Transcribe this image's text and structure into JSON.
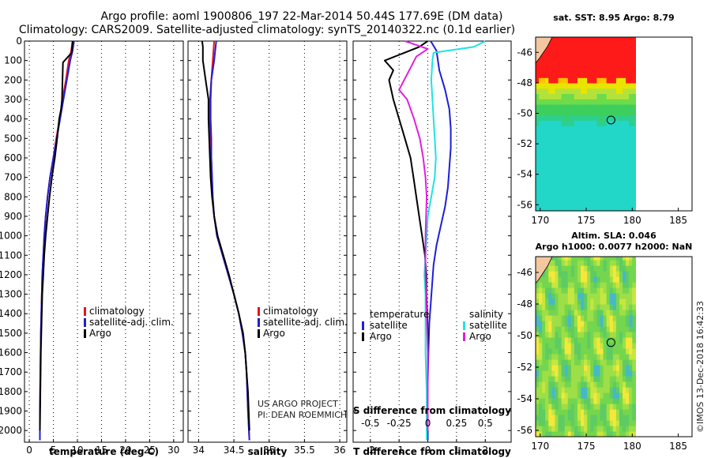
{
  "figure": {
    "title_line1": "Argo profile: aoml 1900806_197 22-Mar-2014 50.44S 177.69E (DM data)",
    "title_line2": "Climatology: CARS2009. Satellite-adjusted climatology: synTS_20140322.nc (0.1d earlier)",
    "credit_project": "US ARGO PROJECT",
    "credit_pi": "PI: DEAN ROEMMICH",
    "imos_stamp": "©IMOS 13-Dec-2018 16:42:33"
  },
  "colors": {
    "argo": "#000000",
    "climatology": "#e8131b",
    "satellite_clim": "#1e1ed8",
    "t_satellite": "#1e1ed8",
    "s_satellite": "#1fe3e3",
    "s_argo": "#e01ee0"
  },
  "chart_data": [
    {
      "id": "temperature",
      "type": "line",
      "xlabel": "temperature (deg C)",
      "ylabel": "",
      "xlim": [
        -1,
        32
      ],
      "ylim": [
        2060,
        0
      ],
      "xticks": [
        0,
        5,
        10,
        15,
        20,
        25,
        30
      ],
      "xtick_labels": [
        "0",
        "5",
        "10",
        "15",
        "20",
        "25",
        "30"
      ],
      "yticks": [
        0,
        100,
        200,
        300,
        400,
        500,
        600,
        700,
        800,
        900,
        1000,
        1100,
        1200,
        1300,
        1400,
        1500,
        1600,
        1700,
        1800,
        1900,
        2000
      ],
      "ytick_labels": [
        "0",
        "100",
        "200",
        "300",
        "400",
        "500",
        "600",
        "700",
        "800",
        "900",
        "1000",
        "1100",
        "1200",
        "1300",
        "1400",
        "1500",
        "1600",
        "1700",
        "1800",
        "1900",
        "2000"
      ],
      "legend": [
        "climatology",
        "satellite-adj. clim.",
        "Argo"
      ],
      "series": [
        {
          "name": "climatology",
          "color_key": "climatology",
          "x": [
            9.0,
            8.7,
            8.2,
            7.6,
            6.9,
            6.3,
            5.6,
            5.0,
            4.3,
            3.8,
            3.4,
            3.1,
            2.9,
            2.7,
            2.6,
            2.5,
            2.4,
            2.35,
            2.3,
            2.25,
            2.2,
            2.2
          ],
          "y": [
            0,
            50,
            100,
            200,
            300,
            400,
            500,
            600,
            700,
            800,
            900,
            1000,
            1100,
            1200,
            1300,
            1400,
            1500,
            1600,
            1700,
            1800,
            1900,
            2050
          ]
        },
        {
          "name": "satellite-adj. clim.",
          "color_key": "satellite_clim",
          "x": [
            9.3,
            9.0,
            8.5,
            7.8,
            7.1,
            6.4,
            5.7,
            5.0,
            4.3,
            3.8,
            3.4,
            3.1,
            2.9,
            2.7,
            2.6,
            2.5,
            2.4,
            2.35,
            2.3,
            2.25,
            2.2,
            2.2
          ],
          "y": [
            0,
            50,
            100,
            200,
            300,
            400,
            500,
            600,
            700,
            800,
            900,
            1000,
            1100,
            1200,
            1300,
            1400,
            1500,
            1600,
            1700,
            1800,
            1900,
            2050
          ]
        },
        {
          "name": "Argo",
          "color_key": "argo",
          "x": [
            9.0,
            8.8,
            7.0,
            6.9,
            6.8,
            6.6,
            6.2,
            5.8,
            5.3,
            4.7,
            4.2,
            3.8,
            3.4,
            3.1,
            2.9,
            2.7,
            2.6,
            2.5,
            2.4,
            2.35,
            2.3,
            2.25,
            2.2
          ],
          "y": [
            0,
            60,
            110,
            200,
            300,
            350,
            400,
            500,
            600,
            700,
            800,
            900,
            1000,
            1100,
            1200,
            1300,
            1400,
            1500,
            1600,
            1700,
            1800,
            1900,
            2000
          ]
        }
      ]
    },
    {
      "id": "salinity",
      "type": "line",
      "xlabel": "salinity",
      "ylabel": "",
      "xlim": [
        33.85,
        36.1
      ],
      "ylim": [
        2060,
        0
      ],
      "xticks": [
        34,
        34.5,
        35,
        35.5,
        36
      ],
      "xtick_labels": [
        "34",
        "34.5",
        "35",
        "35.5",
        "36"
      ],
      "legend": [
        "climatology",
        "satellite-adj. clim.",
        "Argo"
      ],
      "series": [
        {
          "name": "climatology",
          "color_key": "climatology",
          "x": [
            34.22,
            34.2,
            34.18,
            34.16,
            34.16,
            34.17,
            34.18,
            34.19,
            34.2,
            34.22,
            34.26,
            34.34,
            34.42,
            34.5,
            34.57,
            34.62,
            34.66,
            34.68,
            34.69,
            34.7,
            34.72
          ],
          "y": [
            0,
            100,
            200,
            300,
            400,
            500,
            600,
            700,
            800,
            900,
            1000,
            1100,
            1200,
            1300,
            1400,
            1500,
            1600,
            1700,
            1800,
            1900,
            2050
          ]
        },
        {
          "name": "satellite-adj. clim.",
          "color_key": "satellite_clim",
          "x": [
            34.25,
            34.22,
            34.18,
            34.17,
            34.17,
            34.18,
            34.18,
            34.19,
            34.2,
            34.22,
            34.26,
            34.34,
            34.42,
            34.5,
            34.57,
            34.62,
            34.66,
            34.68,
            34.69,
            34.7,
            34.72
          ],
          "y": [
            0,
            100,
            200,
            300,
            400,
            500,
            600,
            700,
            800,
            900,
            1000,
            1100,
            1200,
            1300,
            1400,
            1500,
            1600,
            1700,
            1800,
            1900,
            2050
          ]
        },
        {
          "name": "Argo",
          "color_key": "argo",
          "x": [
            34.05,
            34.06,
            34.06,
            34.1,
            34.14,
            34.14,
            34.15,
            34.16,
            34.17,
            34.19,
            34.22,
            34.27,
            34.35,
            34.43,
            34.5,
            34.57,
            34.63,
            34.66,
            34.68,
            34.7,
            34.71,
            34.72
          ],
          "y": [
            0,
            30,
            100,
            200,
            300,
            400,
            500,
            600,
            700,
            800,
            900,
            1000,
            1100,
            1200,
            1300,
            1400,
            1500,
            1600,
            1700,
            1800,
            1900,
            2000
          ]
        }
      ]
    },
    {
      "id": "difference",
      "type": "line",
      "xlabel": "T difference from climatology",
      "xlabel2": "S difference from climatology",
      "xlim": [
        -2.6,
        2.9
      ],
      "ylim": [
        2060,
        0
      ],
      "xticks": [
        -2,
        -1,
        0,
        1,
        2
      ],
      "xtick_labels": [
        "-2",
        "-1",
        "0",
        "1",
        "2"
      ],
      "s_xticks": [
        -0.5,
        -0.25,
        0,
        0.25,
        0.5
      ],
      "s_xtick_labels": [
        "-0.5",
        "-0.25",
        "0",
        "0.25",
        "0.5"
      ],
      "legend_left_title": "temperature",
      "legend_right_title": "salinity",
      "legend_left": [
        "satellite",
        "Argo"
      ],
      "legend_right": [
        "satellite",
        "Argo"
      ],
      "series": [
        {
          "name": "temperature satellite",
          "color_key": "t_satellite",
          "scale": "T",
          "x": [
            0.1,
            0.3,
            0.4,
            0.6,
            0.75,
            0.8,
            0.8,
            0.75,
            0.7,
            0.6,
            0.45,
            0.3,
            0.2,
            0.15,
            0.1,
            0.05,
            0.02,
            0.0,
            0.0,
            0.0
          ],
          "y": [
            0,
            50,
            150,
            250,
            350,
            450,
            550,
            650,
            750,
            850,
            950,
            1050,
            1150,
            1250,
            1350,
            1450,
            1600,
            1750,
            1900,
            2050
          ]
        },
        {
          "name": "temperature Argo",
          "color_key": "argo",
          "scale": "T",
          "x": [
            0.0,
            -0.3,
            -1.5,
            -1.2,
            -1.35,
            -1.2,
            -1.0,
            -0.8,
            -0.6,
            -0.5,
            -0.4,
            -0.3,
            -0.2,
            -0.1,
            -0.05,
            -0.05,
            -0.02,
            0.0,
            0.0,
            0.0,
            0.0
          ],
          "y": [
            0,
            30,
            100,
            150,
            200,
            300,
            400,
            500,
            600,
            700,
            800,
            900,
            1000,
            1100,
            1200,
            1300,
            1400,
            1500,
            1600,
            1800,
            2000
          ]
        },
        {
          "name": "salinity satellite",
          "color_key": "s_satellite",
          "scale": "S",
          "x": [
            0.5,
            0.4,
            0.05,
            0.04,
            0.03,
            0.04,
            0.05,
            0.06,
            0.07,
            0.06,
            0.03,
            0.0,
            -0.01,
            -0.02,
            -0.03,
            -0.02,
            -0.02,
            -0.02,
            -0.01,
            -0.01,
            -0.01
          ],
          "y": [
            0,
            30,
            60,
            100,
            200,
            300,
            400,
            500,
            600,
            700,
            800,
            900,
            1000,
            1100,
            1200,
            1300,
            1400,
            1600,
            1800,
            1900,
            2050
          ]
        },
        {
          "name": "salinity Argo",
          "color_key": "s_argo",
          "scale": "S",
          "x": [
            -0.2,
            -0.1,
            0.0,
            -0.1,
            -0.25,
            -0.18,
            -0.12,
            -0.07,
            -0.04,
            -0.02,
            -0.01,
            -0.02,
            -0.02,
            -0.01,
            0.0,
            0.0,
            0.0
          ],
          "y": [
            0,
            20,
            40,
            80,
            250,
            300,
            400,
            500,
            600,
            700,
            800,
            1000,
            1200,
            1400,
            1600,
            1800,
            2000
          ]
        }
      ]
    },
    {
      "id": "sst_map",
      "type": "heatmap",
      "title": "sat. SST: 8.95 Argo: 8.79",
      "xlim": [
        169.5,
        186.5
      ],
      "ylim": [
        -56.4,
        -45.0
      ],
      "xticks": [
        170,
        175,
        180,
        185
      ],
      "xtick_labels": [
        "170",
        "175",
        "180",
        "185"
      ],
      "yticks": [
        -46,
        -48,
        -50,
        -52,
        -54,
        -56
      ],
      "ytick_labels": [
        "-46",
        "-48",
        "-50",
        "-52",
        "-54",
        "-56"
      ],
      "data_extent_lon": [
        169.5,
        180.0
      ],
      "argo_position": {
        "lon": 177.69,
        "lat": -50.44
      }
    },
    {
      "id": "sla_map",
      "type": "heatmap",
      "title": "Altim. SLA: 0.046",
      "title2": "Argo h1000: 0.0077 h2000: NaN",
      "xlim": [
        169.5,
        186.5
      ],
      "ylim": [
        -56.4,
        -45.0
      ],
      "xticks": [
        170,
        175,
        180,
        185
      ],
      "xtick_labels": [
        "170",
        "175",
        "180",
        "185"
      ],
      "yticks": [
        -46,
        -48,
        -50,
        -52,
        -54,
        -56
      ],
      "ytick_labels": [
        "-46",
        "-48",
        "-50",
        "-52",
        "-54",
        "-56"
      ],
      "data_extent_lon": [
        169.5,
        180.0
      ],
      "argo_position": {
        "lon": 177.69,
        "lat": -50.44
      }
    }
  ]
}
